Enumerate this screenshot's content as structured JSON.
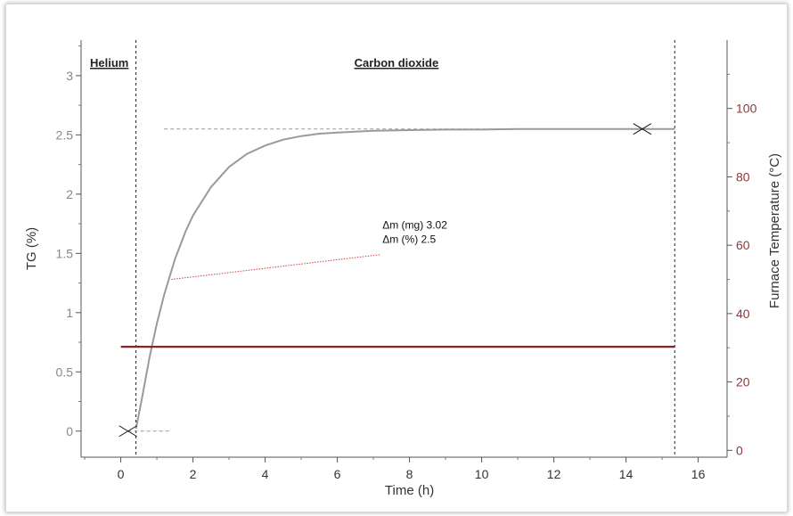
{
  "chart_data": {
    "type": "line",
    "xlabel": "Time (h)",
    "ylabel": "TG (%)",
    "y2label": "Furnace Temperature (°C)",
    "xlim": [
      -1.1,
      16.8
    ],
    "ylim": [
      -0.22,
      3.3
    ],
    "y2lim": [
      -2,
      120
    ],
    "x_ticks": [
      0,
      2,
      4,
      6,
      8,
      10,
      12,
      14,
      16
    ],
    "y_ticks": [
      0,
      0.5,
      1,
      1.5,
      2,
      2.5,
      3
    ],
    "y2_ticks": [
      0,
      20,
      40,
      60,
      80,
      100
    ],
    "grid": false,
    "regions": [
      {
        "label": "Helium",
        "x_start": -1.1,
        "x_end": 0.42
      },
      {
        "label": "Carbon dioxide",
        "x_start": 0.42,
        "x_end": 15.35
      }
    ],
    "boundaries": [
      0.42,
      15.35
    ],
    "series": [
      {
        "axis": "left",
        "color": "#9a9a9a",
        "x": [
          0.42,
          0.6,
          0.8,
          1.0,
          1.2,
          1.5,
          1.8,
          2.0,
          2.5,
          3.0,
          3.5,
          4.0,
          4.5,
          5.0,
          5.5,
          6.0,
          7.0,
          8.0,
          9.0,
          10.0,
          11.0,
          12.0,
          13.0,
          14.0,
          15.35
        ],
        "y": [
          0.02,
          0.3,
          0.63,
          0.91,
          1.15,
          1.45,
          1.69,
          1.82,
          2.06,
          2.23,
          2.34,
          2.41,
          2.46,
          2.49,
          2.51,
          2.52,
          2.535,
          2.54,
          2.545,
          2.545,
          2.55,
          2.55,
          2.55,
          2.55,
          2.55
        ]
      },
      {
        "axis": "right",
        "color": "#7a2a2a",
        "x": [
          0.0,
          15.35
        ],
        "y": [
          30.3,
          30.3
        ]
      }
    ],
    "markers": [
      {
        "x": 0.2,
        "y": 0.0
      },
      {
        "x": 14.45,
        "y": 2.55
      }
    ],
    "reference_lines": [
      {
        "y": 0.0,
        "x_start": 0.2,
        "x_end": 1.4
      },
      {
        "y": 2.55,
        "x_start": 1.2,
        "x_end": 15.35
      }
    ],
    "leader_line": {
      "x_start": 1.4,
      "y_start": 1.28,
      "x_end": 7.2,
      "y_end": 1.49
    },
    "annotation": {
      "lines": [
        "Δm (mg) 3.02",
        "Δm (%) 2.5"
      ],
      "x": 7.25,
      "y": 1.71
    }
  }
}
